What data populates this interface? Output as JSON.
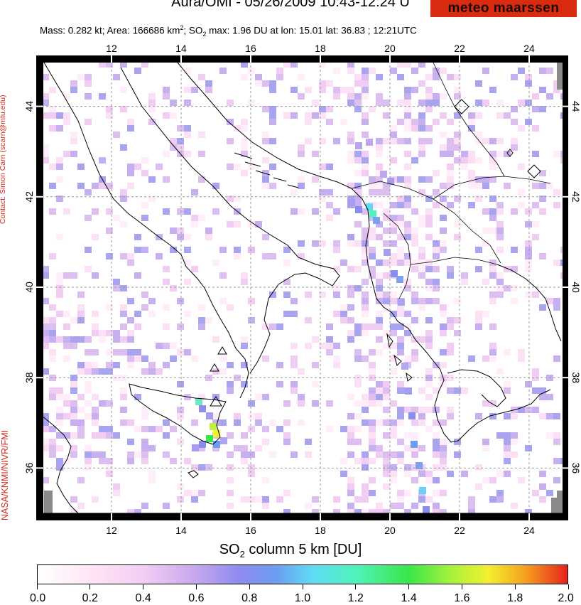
{
  "header": {
    "title": "Aura/OMI - 05/26/2009 10:43-12:24 U",
    "logo_text": "meteo maarssen",
    "subtitle_prefix": "Mass: 0.282 kt; Area: 166686 km",
    "subtitle_sup": "2",
    "subtitle_suffix": "; SO",
    "subtitle_sub": "2",
    "subtitle_end": " max: 1.96 DU at lon: 15.01 lat: 36.83 ; 12:21UTC"
  },
  "contact": "Contact: Simon Carn (scarn@mtu.edu)",
  "credit": "NASA/KNMI/NIVR/FMI",
  "map": {
    "lon_range": [
      10,
      25
    ],
    "lat_range": [
      35,
      45
    ],
    "lon_ticks": [
      "12",
      "14",
      "16",
      "18",
      "20",
      "22",
      "24"
    ],
    "lat_ticks": [
      "36",
      "38",
      "40",
      "42",
      "44"
    ],
    "volcano_markers": [
      "volcano",
      "volcano",
      "volcano"
    ],
    "accent": "#d42a18"
  },
  "colorbar": {
    "title_prefix": "SO",
    "title_sub": "2",
    "title_suffix": " column 5 km [DU]",
    "ticks": [
      "0.0",
      "0.2",
      "0.4",
      "0.6",
      "0.8",
      "1.0",
      "1.2",
      "1.4",
      "1.6",
      "1.8",
      "2.0"
    ],
    "range": [
      0,
      2
    ]
  }
}
